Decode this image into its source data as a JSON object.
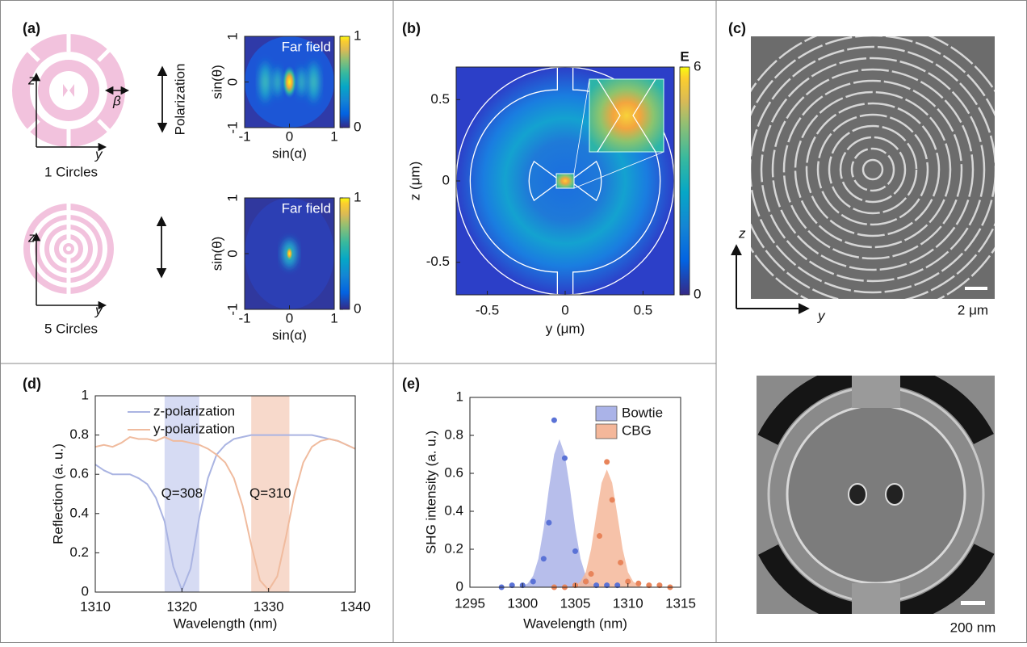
{
  "panel_labels": [
    "(a)",
    "(b)",
    "(c)",
    "(d)",
    "(e)"
  ],
  "schematics": [
    {
      "caption": "1 Circles",
      "z": "z",
      "y": "y",
      "beta": "β",
      "polarization": "Polarization"
    },
    {
      "caption": "5 Circles",
      "z": "z",
      "y": "y"
    }
  ],
  "sem": {
    "z": "z",
    "y": "y",
    "scale_top": "2 μm",
    "scale_bottom": "200 nm"
  },
  "chart_data": [
    {
      "type": "image",
      "title": "Far field",
      "xlabel": "sin(α)",
      "ylabel": "sin(θ)",
      "xlim": [
        -1,
        1
      ],
      "ylim": [
        -1,
        1
      ],
      "xticks": [
        -1,
        0,
        1
      ],
      "yticks": [
        -1,
        0,
        1
      ],
      "colorbar": {
        "lim": [
          0,
          1
        ],
        "ticks": [
          0,
          1
        ]
      }
    },
    {
      "type": "image",
      "title": "Far field",
      "xlabel": "sin(α)",
      "ylabel": "sin(θ)",
      "xlim": [
        -1,
        1
      ],
      "ylim": [
        -1,
        1
      ],
      "xticks": [
        -1,
        0,
        1
      ],
      "yticks": [
        -1,
        0,
        1
      ],
      "colorbar": {
        "lim": [
          0,
          1
        ],
        "ticks": [
          0,
          1
        ]
      }
    },
    {
      "type": "image",
      "xlabel": "y (μm)",
      "ylabel": "z (μm)",
      "xlim": [
        -0.7,
        0.7
      ],
      "ylim": [
        -0.7,
        0.7
      ],
      "xticks": [
        -0.5,
        0,
        0.5
      ],
      "yticks": [
        -0.5,
        0,
        0.5
      ],
      "colorbar": {
        "label": "E",
        "lim": [
          0,
          6
        ],
        "ticks": [
          0,
          6
        ]
      }
    },
    {
      "type": "line",
      "xlabel": "Wavelength (nm)",
      "ylabel": "Reflection (a. u.)",
      "xlim": [
        1310,
        1340
      ],
      "ylim": [
        0,
        1
      ],
      "xticks": [
        1310,
        1320,
        1330,
        1340
      ],
      "yticks": [
        0,
        0.2,
        0.4,
        0.6,
        0.8,
        1
      ],
      "legend": "upper left",
      "x": [
        1310,
        1311,
        1312,
        1313,
        1314,
        1315,
        1316,
        1317,
        1318,
        1319,
        1320,
        1321,
        1322,
        1323,
        1324,
        1325,
        1326,
        1327,
        1328,
        1329,
        1330,
        1331,
        1332,
        1333,
        1334,
        1335,
        1336,
        1337,
        1338,
        1339,
        1340
      ],
      "series": [
        {
          "name": "z-polarization",
          "color": "#aab4e2",
          "values": [
            0.65,
            0.62,
            0.6,
            0.6,
            0.6,
            0.58,
            0.55,
            0.48,
            0.36,
            0.13,
            0.01,
            0.12,
            0.38,
            0.58,
            0.7,
            0.75,
            0.78,
            0.79,
            0.8,
            0.8,
            0.8,
            0.8,
            0.8,
            0.8,
            0.8,
            0.8,
            0.79,
            0.78,
            0.77,
            0.75,
            0.73
          ]
        },
        {
          "name": "y-polarization",
          "color": "#f0bb9e",
          "values": [
            0.74,
            0.75,
            0.74,
            0.76,
            0.79,
            0.78,
            0.78,
            0.77,
            0.79,
            0.77,
            0.77,
            0.76,
            0.75,
            0.73,
            0.7,
            0.66,
            0.58,
            0.44,
            0.24,
            0.06,
            0.01,
            0.08,
            0.28,
            0.5,
            0.66,
            0.74,
            0.77,
            0.78,
            0.77,
            0.75,
            0.73
          ]
        }
      ],
      "bands": [
        {
          "range": [
            1318,
            1322
          ],
          "color": "#d6dbf3",
          "label": "Q=308"
        },
        {
          "range": [
            1328,
            1332.4
          ],
          "color": "#f7d9cb",
          "label": "Q=310"
        }
      ]
    },
    {
      "type": "scatter",
      "xlabel": "Wavelength (nm)",
      "ylabel": "SHG intensity (a. u.)",
      "xlim": [
        1295,
        1315
      ],
      "ylim": [
        0,
        1
      ],
      "xticks": [
        1295,
        1300,
        1305,
        1310,
        1315
      ],
      "yticks": [
        0,
        0.2,
        0.4,
        0.6,
        0.8,
        1
      ],
      "legend": "upper right",
      "series": [
        {
          "name": "Bowtie",
          "color": "#5a72d6",
          "fill": "#aab3e8",
          "x": [
            1298,
            1299,
            1300,
            1301,
            1302,
            1302.5,
            1303,
            1304,
            1305,
            1306,
            1307,
            1308,
            1309
          ],
          "values": [
            0,
            0.01,
            0.01,
            0.03,
            0.15,
            0.34,
            0.88,
            0.68,
            0.19,
            0.03,
            0.01,
            0.01,
            0.01
          ],
          "fit": {
            "x": [
              1299,
              1299.5,
              1300,
              1300.5,
              1301,
              1301.5,
              1302,
              1302.5,
              1303,
              1303.5,
              1304,
              1304.5,
              1305,
              1305.5,
              1306,
              1306.5,
              1307,
              1307.5,
              1308
            ],
            "values": [
              0,
              0,
              0.005,
              0.02,
              0.06,
              0.15,
              0.31,
              0.52,
              0.7,
              0.78,
              0.7,
              0.52,
              0.31,
              0.15,
              0.06,
              0.02,
              0.005,
              0,
              0
            ]
          }
        },
        {
          "name": "CBG",
          "color": "#e8845a",
          "fill": "#f4b79a",
          "x": [
            1303,
            1304,
            1305,
            1306,
            1306.5,
            1307.3,
            1308,
            1308.5,
            1309.3,
            1310,
            1311,
            1312,
            1313,
            1314
          ],
          "values": [
            0,
            0,
            0.01,
            0.03,
            0.07,
            0.27,
            0.66,
            0.46,
            0.13,
            0.03,
            0.02,
            0.01,
            0.01,
            0
          ],
          "fit": {
            "x": [
              1304,
              1304.5,
              1305,
              1305.5,
              1306,
              1306.5,
              1307,
              1307.5,
              1308,
              1308.5,
              1309,
              1309.5,
              1310,
              1310.5,
              1311,
              1311.5,
              1312
            ],
            "values": [
              0,
              0,
              0.01,
              0.03,
              0.08,
              0.2,
              0.38,
              0.55,
              0.62,
              0.55,
              0.38,
              0.2,
              0.08,
              0.03,
              0.01,
              0,
              0
            ]
          }
        }
      ]
    }
  ]
}
